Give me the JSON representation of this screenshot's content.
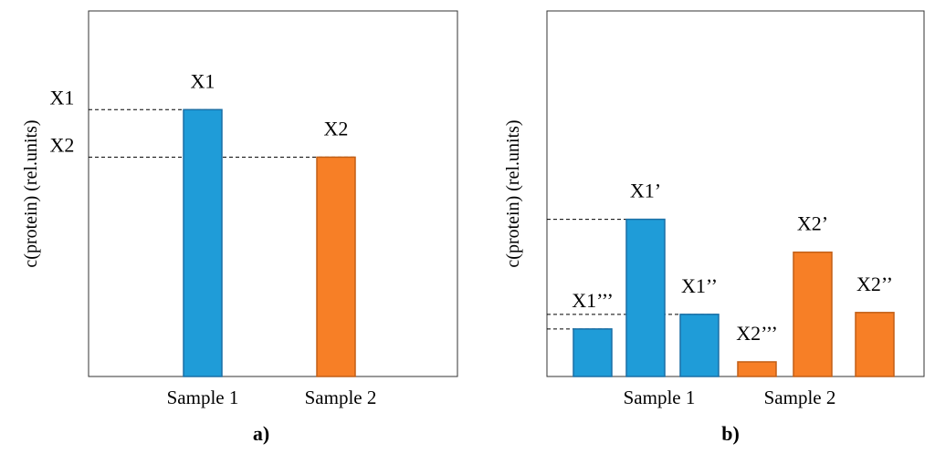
{
  "chart_data": [
    {
      "type": "bar",
      "panel_label": "a)",
      "ylabel": "c(protein) (rel.units)",
      "xlabel": "",
      "categories": [
        "Sample 1",
        "Sample 2"
      ],
      "ylim": [
        0,
        100
      ],
      "grid": false,
      "bars": [
        {
          "label": "X1",
          "group": "Sample 1",
          "value": 73,
          "color": "#1f9cd8"
        },
        {
          "label": "X2",
          "group": "Sample 2",
          "value": 60,
          "color": "#f77f26"
        }
      ],
      "reference_lines": [
        {
          "label": "X1",
          "value": 73
        },
        {
          "label": "X2",
          "value": 60
        }
      ]
    },
    {
      "type": "bar",
      "panel_label": "b)",
      "ylabel": "c(protein) (rel.units)",
      "xlabel": "",
      "categories": [
        "Sample 1",
        "Sample 2"
      ],
      "ylim": [
        0,
        100
      ],
      "grid": false,
      "bars": [
        {
          "label": "X1’’’",
          "group": "Sample 1",
          "value": 13,
          "color": "#1f9cd8"
        },
        {
          "label": "X1’",
          "group": "Sample 1",
          "value": 43,
          "color": "#1f9cd8"
        },
        {
          "label": "X1’’",
          "group": "Sample 1",
          "value": 17,
          "color": "#1f9cd8"
        },
        {
          "label": "X2’’’",
          "group": "Sample 2",
          "value": 4,
          "color": "#f77f26"
        },
        {
          "label": "X2’",
          "group": "Sample 2",
          "value": 34,
          "color": "#f77f26"
        },
        {
          "label": "X2’’",
          "group": "Sample 2",
          "value": 17.5,
          "color": "#f77f26"
        }
      ],
      "reference_lines": [
        {
          "value": 43
        },
        {
          "value": 17
        },
        {
          "value": 13
        }
      ]
    }
  ]
}
